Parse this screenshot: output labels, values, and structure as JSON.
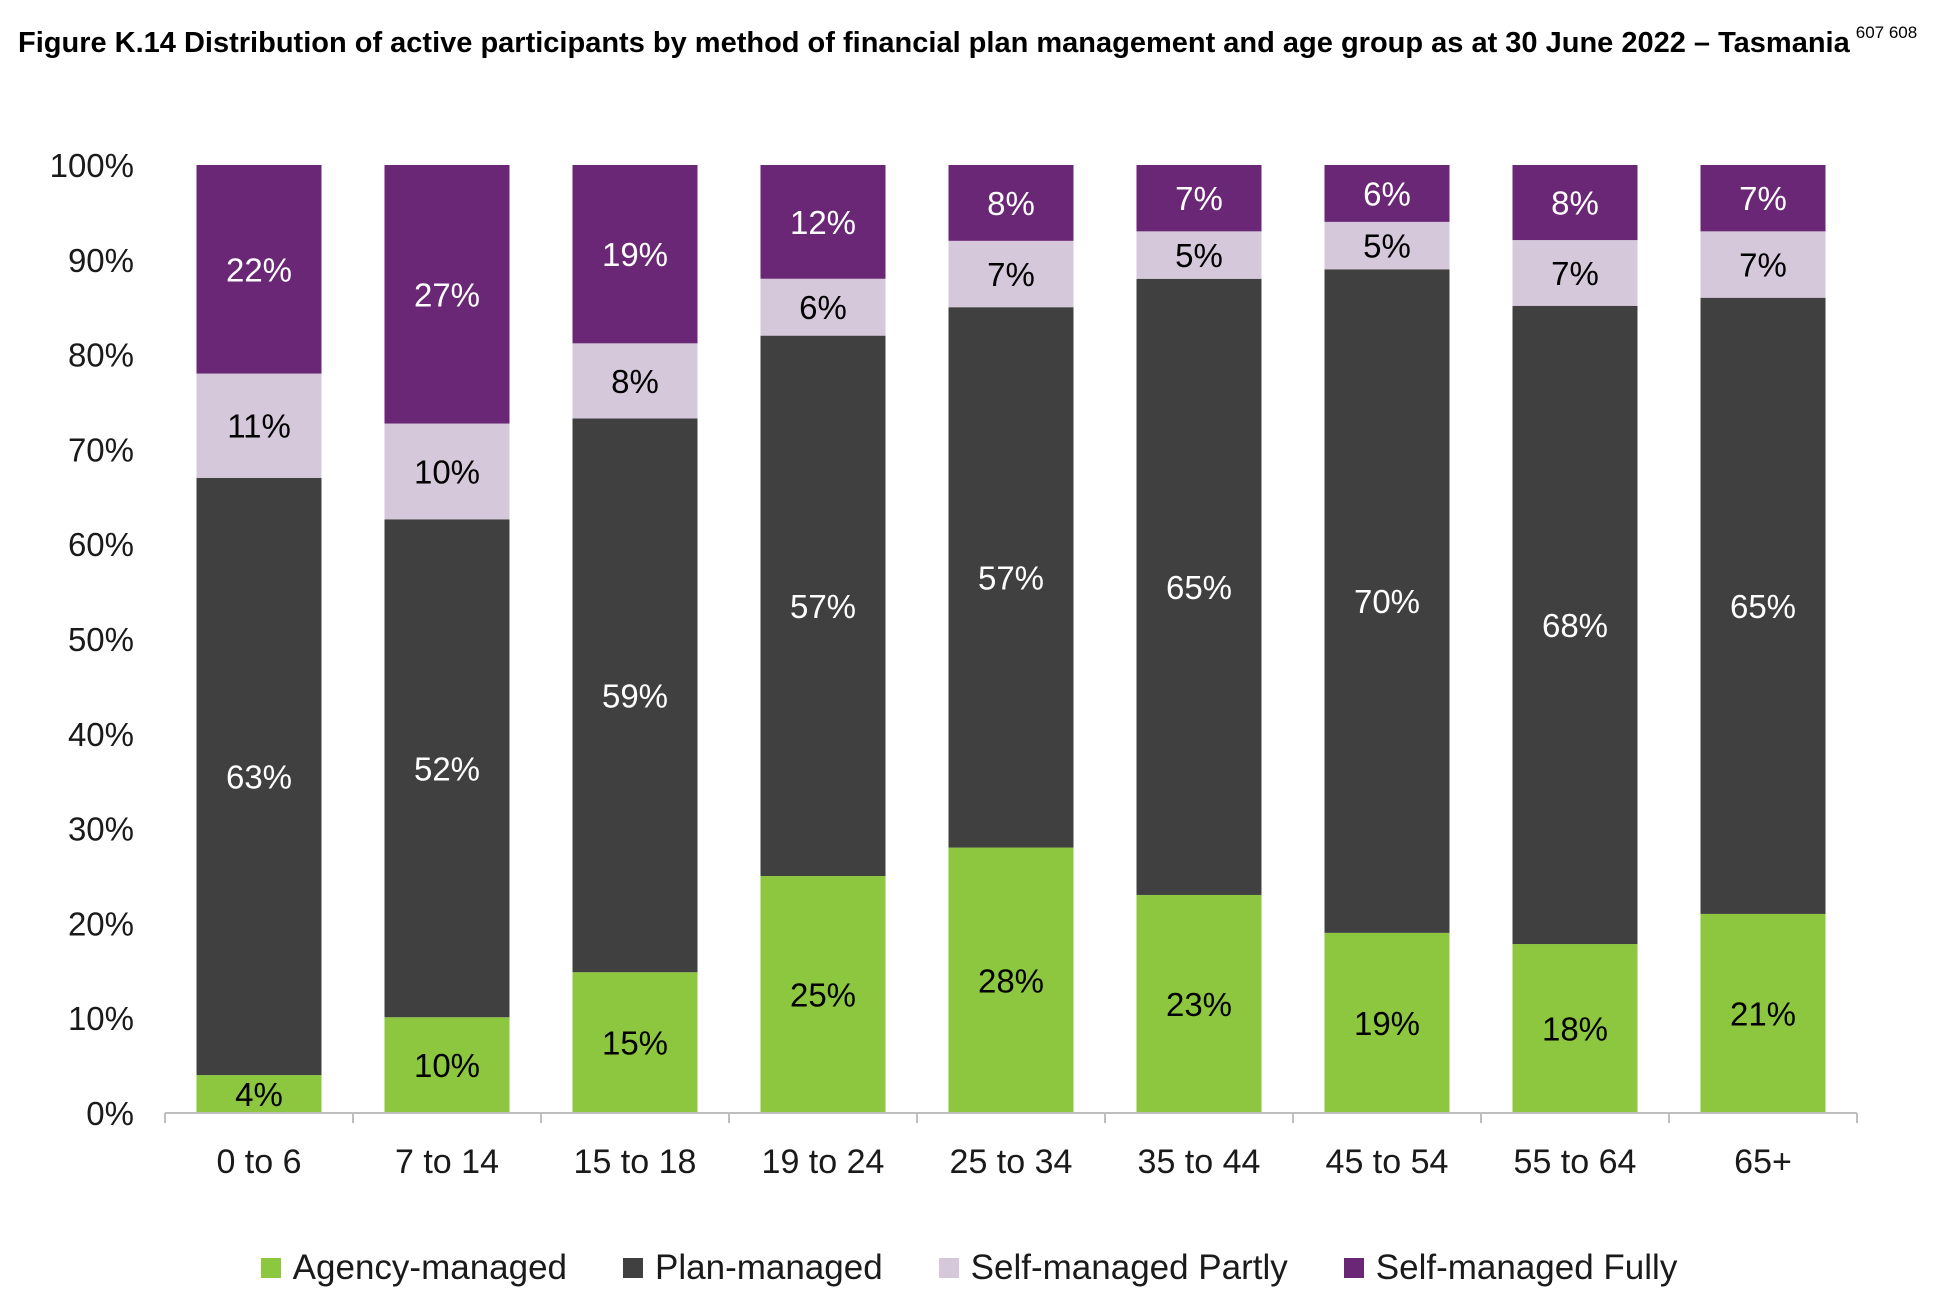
{
  "title": {
    "text": "Figure K.14 Distribution of active participants by method of financial plan management and age group as at 30 June 2022 – Tasmania",
    "footnotes": "607 608"
  },
  "chart_data": {
    "type": "bar",
    "stacked": true,
    "categories": [
      "0 to 6",
      "7 to 14",
      "15 to 18",
      "19 to 24",
      "25 to 34",
      "35 to 44",
      "45 to 54",
      "55 to 64",
      "65+"
    ],
    "ylim": [
      0,
      100
    ],
    "yticks": [
      "0%",
      "10%",
      "20%",
      "30%",
      "40%",
      "50%",
      "60%",
      "70%",
      "80%",
      "90%",
      "100%"
    ],
    "legend_position": "bottom",
    "grid": false,
    "series": [
      {
        "name": "Agency-managed",
        "color": "#8dc63f",
        "label_color": "#000000",
        "values": [
          4,
          10,
          15,
          25,
          28,
          23,
          19,
          18,
          21
        ],
        "labels": [
          "4%",
          "10%",
          "15%",
          "25%",
          "28%",
          "23%",
          "19%",
          "18%",
          "21%"
        ]
      },
      {
        "name": "Plan-managed",
        "color": "#404041",
        "label_color": "#ffffff",
        "values": [
          63,
          52,
          59,
          57,
          57,
          65,
          70,
          68,
          65
        ],
        "labels": [
          "63%",
          "52%",
          "59%",
          "57%",
          "57%",
          "65%",
          "70%",
          "68%",
          "65%"
        ]
      },
      {
        "name": "Self-managed Partly",
        "color": "#d6c8db",
        "label_color": "#000000",
        "values": [
          11,
          10,
          8,
          6,
          7,
          5,
          5,
          7,
          7
        ],
        "labels": [
          "11%",
          "10%",
          "8%",
          "6%",
          "7%",
          "5%",
          "5%",
          "7%",
          "7%"
        ]
      },
      {
        "name": "Self-managed Fully",
        "color": "#6a2775",
        "label_color": "#ffffff",
        "values": [
          22,
          27,
          19,
          12,
          8,
          7,
          6,
          8,
          7
        ],
        "labels": [
          "22%",
          "27%",
          "19%",
          "12%",
          "8%",
          "7%",
          "6%",
          "8%",
          "7%"
        ]
      }
    ]
  }
}
